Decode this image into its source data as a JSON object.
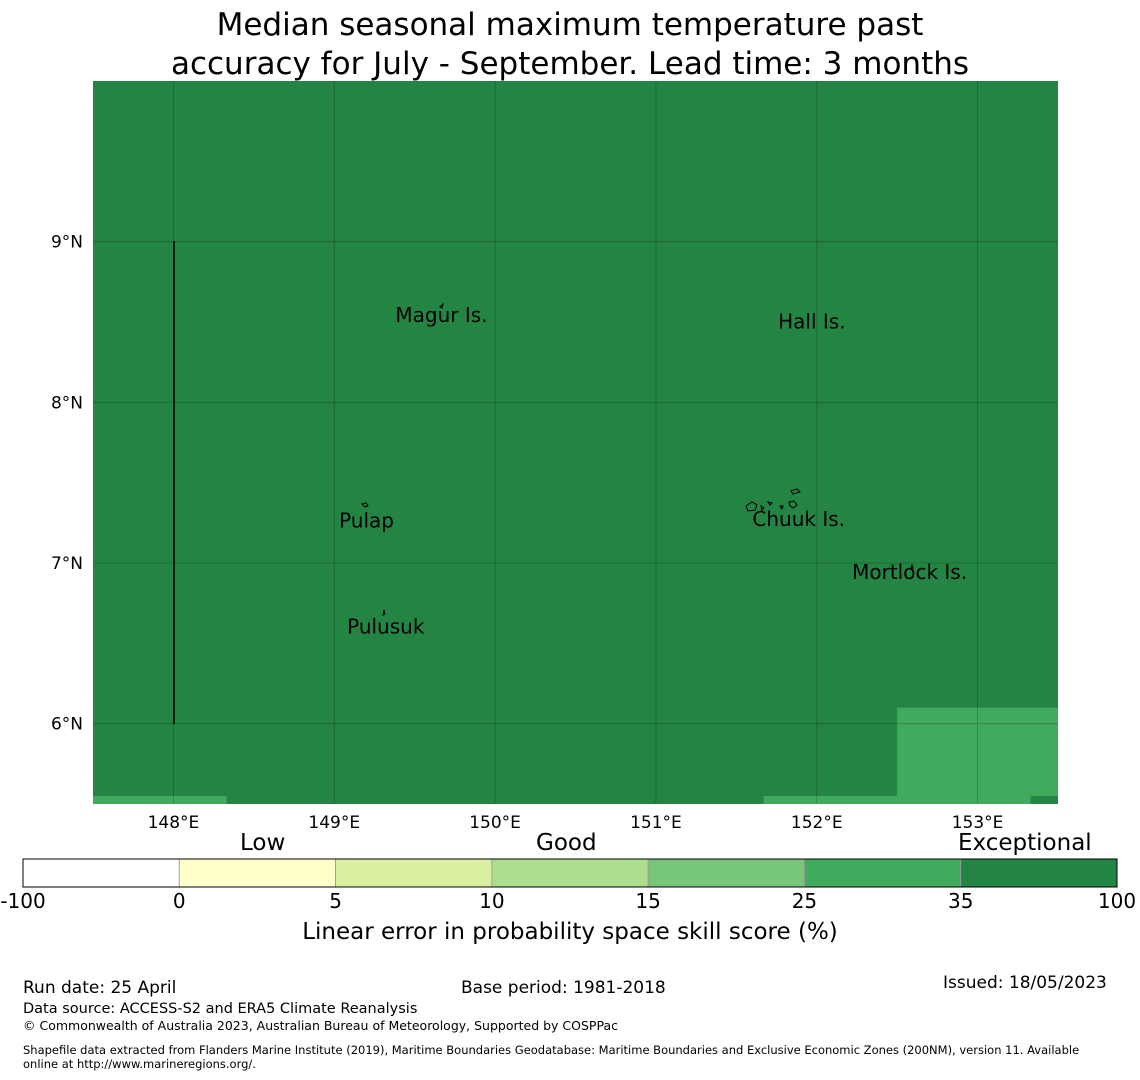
{
  "title": {
    "line1": "Median seasonal maximum temperature past",
    "line2": "accuracy for July - September. Lead time: 3 months"
  },
  "map": {
    "lon_range": [
      147.5,
      153.5
    ],
    "lat_range": [
      5.5,
      10.0
    ],
    "lon_ticks": [
      {
        "value": 148,
        "label": "148°E"
      },
      {
        "value": 149,
        "label": "149°E"
      },
      {
        "value": 150,
        "label": "150°E"
      },
      {
        "value": 151,
        "label": "151°E"
      },
      {
        "value": 152,
        "label": "152°E"
      },
      {
        "value": 153,
        "label": "153°E"
      }
    ],
    "lat_ticks": [
      {
        "value": 9,
        "label": "9°N"
      },
      {
        "value": 8,
        "label": "8°N"
      },
      {
        "value": 7,
        "label": "7°N"
      },
      {
        "value": 6,
        "label": "6°N"
      }
    ],
    "background_class_color": "#238443",
    "grid": true,
    "places": [
      {
        "name": "Magur Is.",
        "lon": 149.38,
        "lat": 8.5
      },
      {
        "name": "Hall Is.",
        "lon": 151.76,
        "lat": 8.46
      },
      {
        "name": "Pulap",
        "lon": 149.03,
        "lat": 7.22
      },
      {
        "name": "Chuuk Is.",
        "lon": 151.6,
        "lat": 7.23
      },
      {
        "name": "Mortlock Is.",
        "lon": 152.22,
        "lat": 6.9
      },
      {
        "name": "Pulusuk",
        "lon": 149.08,
        "lat": 6.56
      }
    ]
  },
  "colorbar": {
    "category_labels": [
      {
        "text": "Low"
      },
      {
        "text": "Good"
      },
      {
        "text": "Exceptional"
      }
    ],
    "bins": [
      {
        "color": "#ffffff"
      },
      {
        "color": "#ffffcc"
      },
      {
        "color": "#d9f0a3"
      },
      {
        "color": "#addd8e"
      },
      {
        "color": "#78c679"
      },
      {
        "color": "#41ab5d"
      },
      {
        "color": "#238443"
      }
    ],
    "ticks": [
      "-100",
      "0",
      "5",
      "10",
      "15",
      "25",
      "35",
      "100"
    ],
    "title": "Linear error in probability space skill score (%)"
  },
  "footer": {
    "run_date": "Run date: 25 April",
    "base_period": "Base period: 1981-2018",
    "issued": "Issued: 18/05/2023",
    "data_source": "Data source: ACCESS-S2 and ERA5 Climate Reanalysis",
    "copyright": "© Commonwealth of Australia 2023, Australian Bureau of Meteorology, Supported by COSPPac",
    "shapefile_line1": "Shapefile data extracted from Flanders Marine Institute (2019), Maritime Boundaries Geodatabase: Maritime Boundaries and Exclusive Economic Zones (200NM), version 11. Available",
    "shapefile_line2": "online at http://www.marineregions.org/."
  }
}
